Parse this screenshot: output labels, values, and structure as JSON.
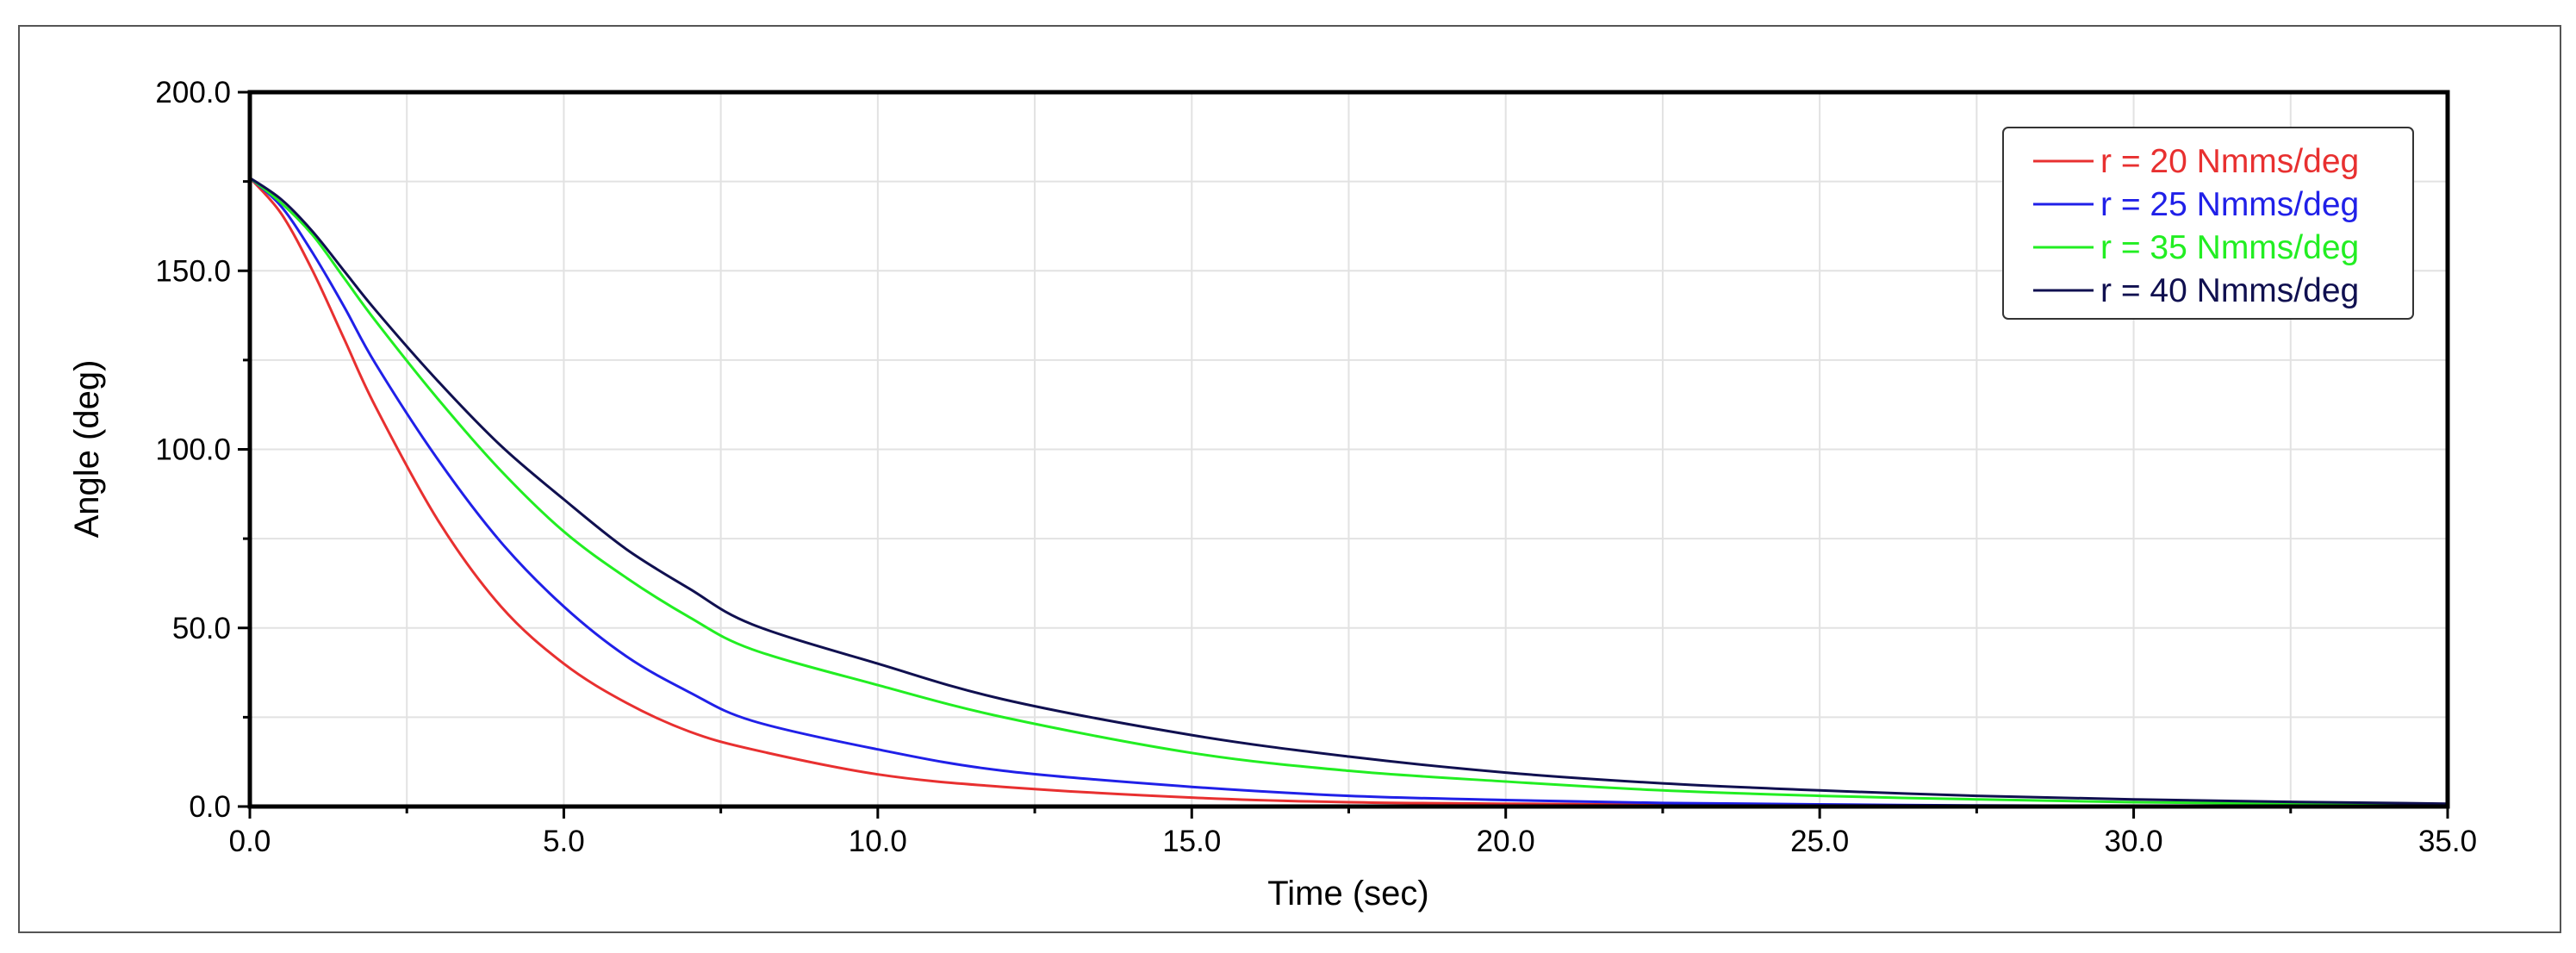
{
  "chart_data": {
    "type": "line",
    "title": "",
    "xlabel": "Time (sec)",
    "ylabel": "Angle (deg)",
    "xlim": [
      0,
      35
    ],
    "ylim": [
      0,
      200
    ],
    "x_ticks": [
      "0.0",
      "5.0",
      "10.0",
      "15.0",
      "20.0",
      "25.0",
      "30.0",
      "35.0"
    ],
    "y_ticks": [
      "0.0",
      "50.0",
      "100.0",
      "150.0",
      "200.0"
    ],
    "grid": true,
    "legend_position": "top-right",
    "x": [
      0,
      0.5,
      1,
      1.5,
      2,
      3,
      4,
      5,
      6,
      7,
      8,
      10,
      12,
      15,
      17.5,
      20,
      22.5,
      25,
      27.5,
      30,
      32.5,
      35
    ],
    "series": [
      {
        "name": "r = 20 Nmms/deg",
        "color": "#e83030",
        "values": [
          176,
          166,
          150,
          131,
          112,
          80,
          56,
          40,
          29,
          21,
          16,
          9,
          5.5,
          2.5,
          1.2,
          0.8,
          0.5,
          0.3,
          0.2,
          0.1,
          0.1,
          0.1
        ]
      },
      {
        "name": "r = 25 Nmms/deg",
        "color": "#2020e8",
        "values": [
          176,
          168,
          155,
          140,
          124,
          97,
          74,
          56,
          42,
          32,
          24,
          16,
          10,
          5.5,
          3,
          1.8,
          1,
          0.6,
          0.3,
          0.2,
          0.1,
          0.1
        ]
      },
      {
        "name": "r = 35 Nmms/deg",
        "color": "#22ee22",
        "values": [
          176,
          169,
          160,
          148,
          136,
          114,
          94,
          77,
          64,
          53,
          44,
          34,
          25,
          15,
          10,
          7,
          4.5,
          3,
          2,
          1.2,
          0.8,
          0.5
        ]
      },
      {
        "name": "r = 40 Nmms/deg",
        "color": "#101050",
        "values": [
          176,
          170,
          161,
          150,
          139,
          119,
          101,
          86,
          72,
          61,
          51,
          40,
          30,
          20,
          14,
          9.5,
          6.5,
          4.5,
          3,
          2,
          1.3,
          0.8
        ]
      }
    ]
  }
}
